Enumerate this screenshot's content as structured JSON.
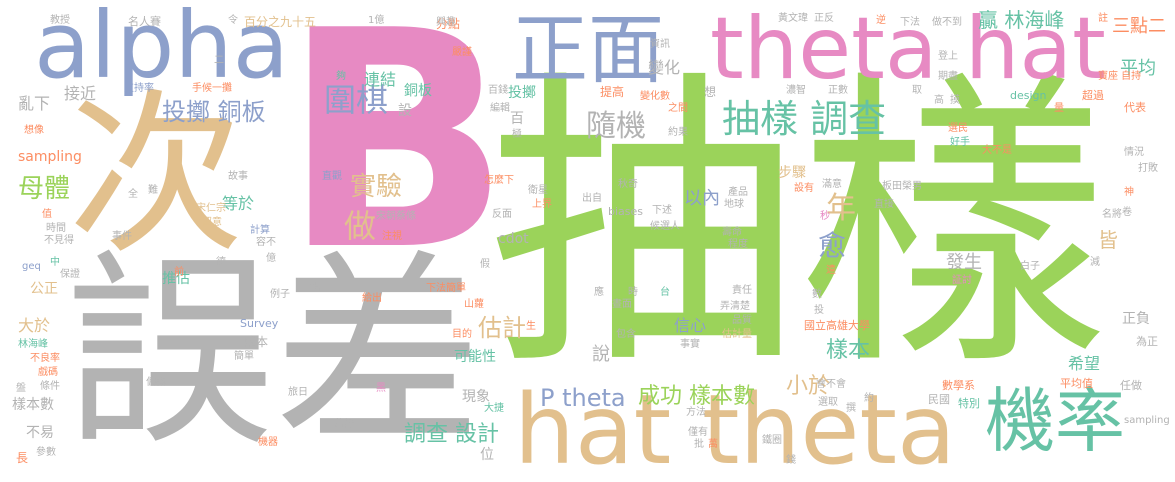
{
  "palette": {
    "green": "#9bd35a",
    "tan": "#e2c08d",
    "blue": "#8da0cb",
    "pink": "#e78ac3",
    "gray": "#b3b3b3",
    "teal": "#66c2a5",
    "orange": "#fc8d62",
    "yellow": "#ffd92f"
  },
  "words": [
    "B",
    "抽樣",
    "誤差",
    "次",
    "theta hat",
    "alpha",
    "正面",
    "hat theta",
    "機率",
    "抽樣 調查",
    "隨機",
    "圍棋",
    "投擲 銅板",
    "實驗",
    "做",
    "母體",
    "P theta",
    "成功 樣本數",
    "調查 設計",
    "樣本",
    "估計",
    "年",
    "愈",
    "小於",
    "平均",
    "贏 林海峰",
    "三點二",
    "連結",
    "以內",
    "發生",
    "皆",
    "希望",
    "可能性",
    "推估",
    "大於",
    "公正",
    "接近",
    "亂下",
    "等於",
    "sampling",
    "樣本數",
    "不易",
    "信心",
    "說",
    "現象",
    "變化",
    "銅板",
    "投擲",
    "步驟",
    "正負",
    "為正",
    "design",
    "代表",
    "寶座 自持",
    "超過",
    "國立高雄大學",
    "數學系",
    "平均值",
    "特別",
    "民國",
    "任做",
    "Survey",
    "cdot",
    "biases",
    "sampling",
    "百分之九十五",
    "名人賽",
    "教授",
    "手候一攤",
    "支持率",
    "想像",
    "事件",
    "geq",
    "林海峰",
    "不良率",
    "戲碼",
    "條件",
    "盤",
    "參數",
    "長",
    "百錢",
    "分點",
    "上界",
    "反面",
    "衛星",
    "怎麼下",
    "直觀",
    "宋朝蔡條",
    "注視",
    "宋仁宗",
    "留意",
    "計算",
    "容不",
    "故事",
    "時間",
    "不見得",
    "值",
    "全",
    "難",
    "德",
    "保證",
    "中",
    "例子",
    "成本",
    "簡單",
    "偏概",
    "旅日",
    "機器",
    "藉好",
    "黑",
    "給出",
    "下法簡單",
    "山蘿",
    "目的",
    "生",
    "大捷",
    "位",
    "方法",
    "僅有",
    "批",
    "萬",
    "鐵圈",
    "錢",
    "包含",
    "事實",
    "責任",
    "弄清楚",
    "品質",
    "估計量",
    "晝面",
    "台",
    "應",
    "時",
    "下述",
    "地球",
    "產品",
    "壽命",
    "程度",
    "候選人",
    "出自",
    "秋奇",
    "資訊",
    "嚴謹",
    "興趣",
    "變化數",
    "提高",
    "之間",
    "約果",
    "想",
    "濃智",
    "正數",
    "設有",
    "滿意",
    "板田榮男",
    "秒",
    "遠",
    "白子",
    "減",
    "証討",
    "名將",
    "卷",
    "神",
    "打敗",
    "情況",
    "好手",
    "選民",
    "大不是",
    "量",
    "期盡",
    "登上",
    "黃文瑋",
    "正反",
    "註",
    "下法",
    "做不到",
    "取",
    "高",
    "逆",
    "指",
    "假",
    "前",
    "億",
    "令",
    "1億",
    "二",
    "夠",
    "編輯",
    "極",
    "百",
    "設",
    "數",
    "投",
    "撰",
    "約",
    "會不會",
    "選取",
    "直接",
    "摸"
  ]
}
